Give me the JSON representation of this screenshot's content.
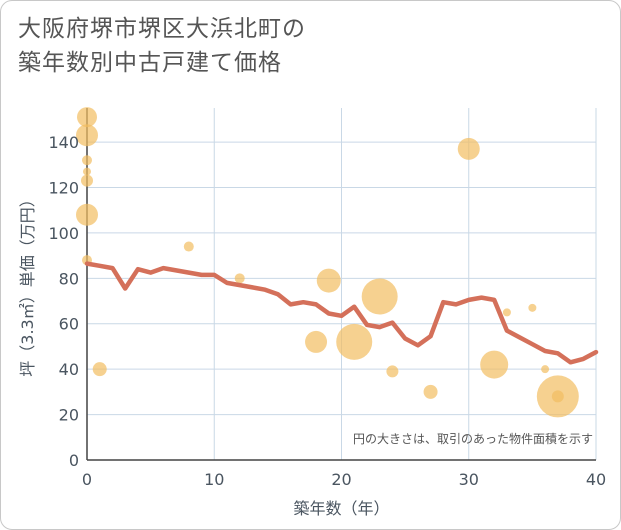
{
  "title_lines": [
    "大阪府堺市堺区大浜北町の",
    "築年数別中古戸建て価格"
  ],
  "chart_data": {
    "type": "scatter+line",
    "title": "大阪府堺市堺区大浜北町の 築年数別中古戸建て価格",
    "xlabel": "築年数（年）",
    "ylabel": "坪（3.3㎡）単価（万円）",
    "xlim": [
      0,
      40
    ],
    "ylim": [
      0,
      155
    ],
    "xticks": [
      0,
      10,
      20,
      30,
      40
    ],
    "yticks": [
      0,
      20,
      40,
      60,
      80,
      100,
      120,
      140
    ],
    "grid": true,
    "annotation": "円の大きさは、取引のあった物件面積を示す",
    "colors": {
      "line": "#d4705a",
      "bubble": "#f2bd61",
      "grid": "#c9d8e6",
      "axis_text": "#4a5560"
    },
    "trend_line": {
      "x": [
        0,
        1,
        2,
        3,
        4,
        5,
        6,
        7,
        8,
        9,
        10,
        11,
        12,
        13,
        14,
        15,
        16,
        17,
        18,
        19,
        20,
        21,
        22,
        23,
        24,
        25,
        26,
        27,
        28,
        29,
        30,
        31,
        32,
        33,
        34,
        35,
        36,
        37,
        38,
        39,
        40
      ],
      "y": [
        86.5,
        85.5,
        84.5,
        75.5,
        84,
        82.5,
        84.5,
        83.5,
        82.5,
        81.5,
        81.5,
        78,
        77,
        76,
        75,
        73,
        68.5,
        69.5,
        68.5,
        64.5,
        63.5,
        67.5,
        59.5,
        58.5,
        60.5,
        53.5,
        50.5,
        54.5,
        69.5,
        68.5,
        70.5,
        71.5,
        70.5,
        57,
        54,
        51,
        48,
        47,
        43,
        44.5,
        47.5
      ]
    },
    "bubbles": [
      {
        "x": 0,
        "y": 151,
        "r": 10
      },
      {
        "x": 0,
        "y": 143,
        "r": 11
      },
      {
        "x": 0,
        "y": 132,
        "r": 5
      },
      {
        "x": 0,
        "y": 127,
        "r": 4
      },
      {
        "x": 0,
        "y": 123,
        "r": 6
      },
      {
        "x": 0,
        "y": 108,
        "r": 11
      },
      {
        "x": 0,
        "y": 88,
        "r": 5
      },
      {
        "x": 1,
        "y": 40,
        "r": 7
      },
      {
        "x": 8,
        "y": 94,
        "r": 5
      },
      {
        "x": 12,
        "y": 80,
        "r": 5
      },
      {
        "x": 18,
        "y": 52,
        "r": 11
      },
      {
        "x": 19,
        "y": 79,
        "r": 12
      },
      {
        "x": 21,
        "y": 52,
        "r": 18
      },
      {
        "x": 23,
        "y": 72,
        "r": 18
      },
      {
        "x": 24,
        "y": 39,
        "r": 6
      },
      {
        "x": 27,
        "y": 30,
        "r": 7
      },
      {
        "x": 30,
        "y": 137,
        "r": 11
      },
      {
        "x": 32,
        "y": 42,
        "r": 14
      },
      {
        "x": 33,
        "y": 65,
        "r": 4
      },
      {
        "x": 35,
        "y": 67,
        "r": 4
      },
      {
        "x": 36,
        "y": 40,
        "r": 4
      },
      {
        "x": 37,
        "y": 28,
        "r": 21
      },
      {
        "x": 37,
        "y": 28,
        "r": 6
      }
    ]
  }
}
